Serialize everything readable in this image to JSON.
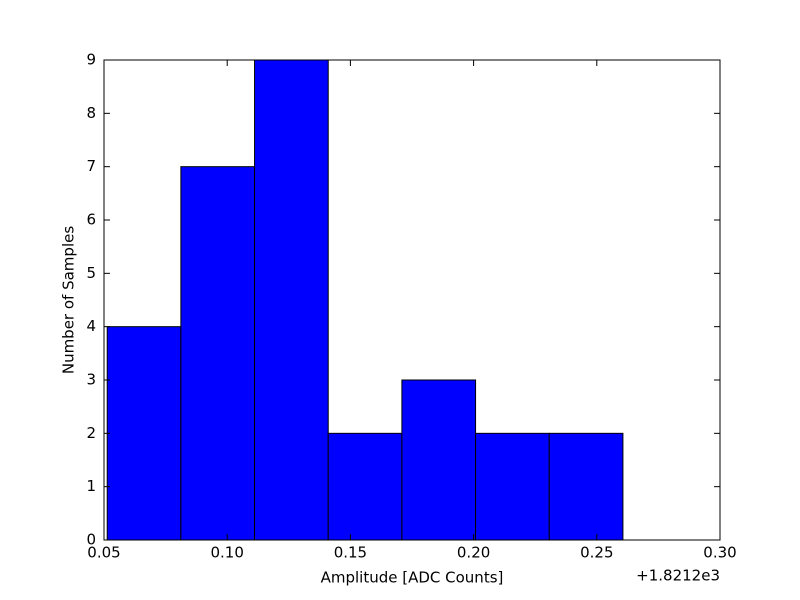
{
  "chart_data": {
    "type": "histogram",
    "xlabel": "Amplitude [ADC Counts]",
    "ylabel": "Number of Samples",
    "offset_label": "+1.8212e3",
    "bins": [
      0.0513,
      0.0812,
      0.1111,
      0.141,
      0.1709,
      0.2008,
      0.2307,
      0.2606
    ],
    "counts": [
      4,
      7,
      9,
      2,
      3,
      2,
      2
    ],
    "color": "#0000ff",
    "xlim": [
      0.05,
      0.3
    ],
    "xticks": [
      0.05,
      {
        "value": 0.1,
        "label": "0.10"
      },
      0.15,
      {
        "value": 0.2,
        "label": "0.20"
      },
      0.25,
      {
        "value": 0.3,
        "label": "0.30"
      }
    ],
    "ylim": [
      0,
      9
    ],
    "yticks": [
      0,
      1,
      2,
      3,
      4,
      5,
      6,
      7,
      8,
      9
    ],
    "grid": false
  }
}
